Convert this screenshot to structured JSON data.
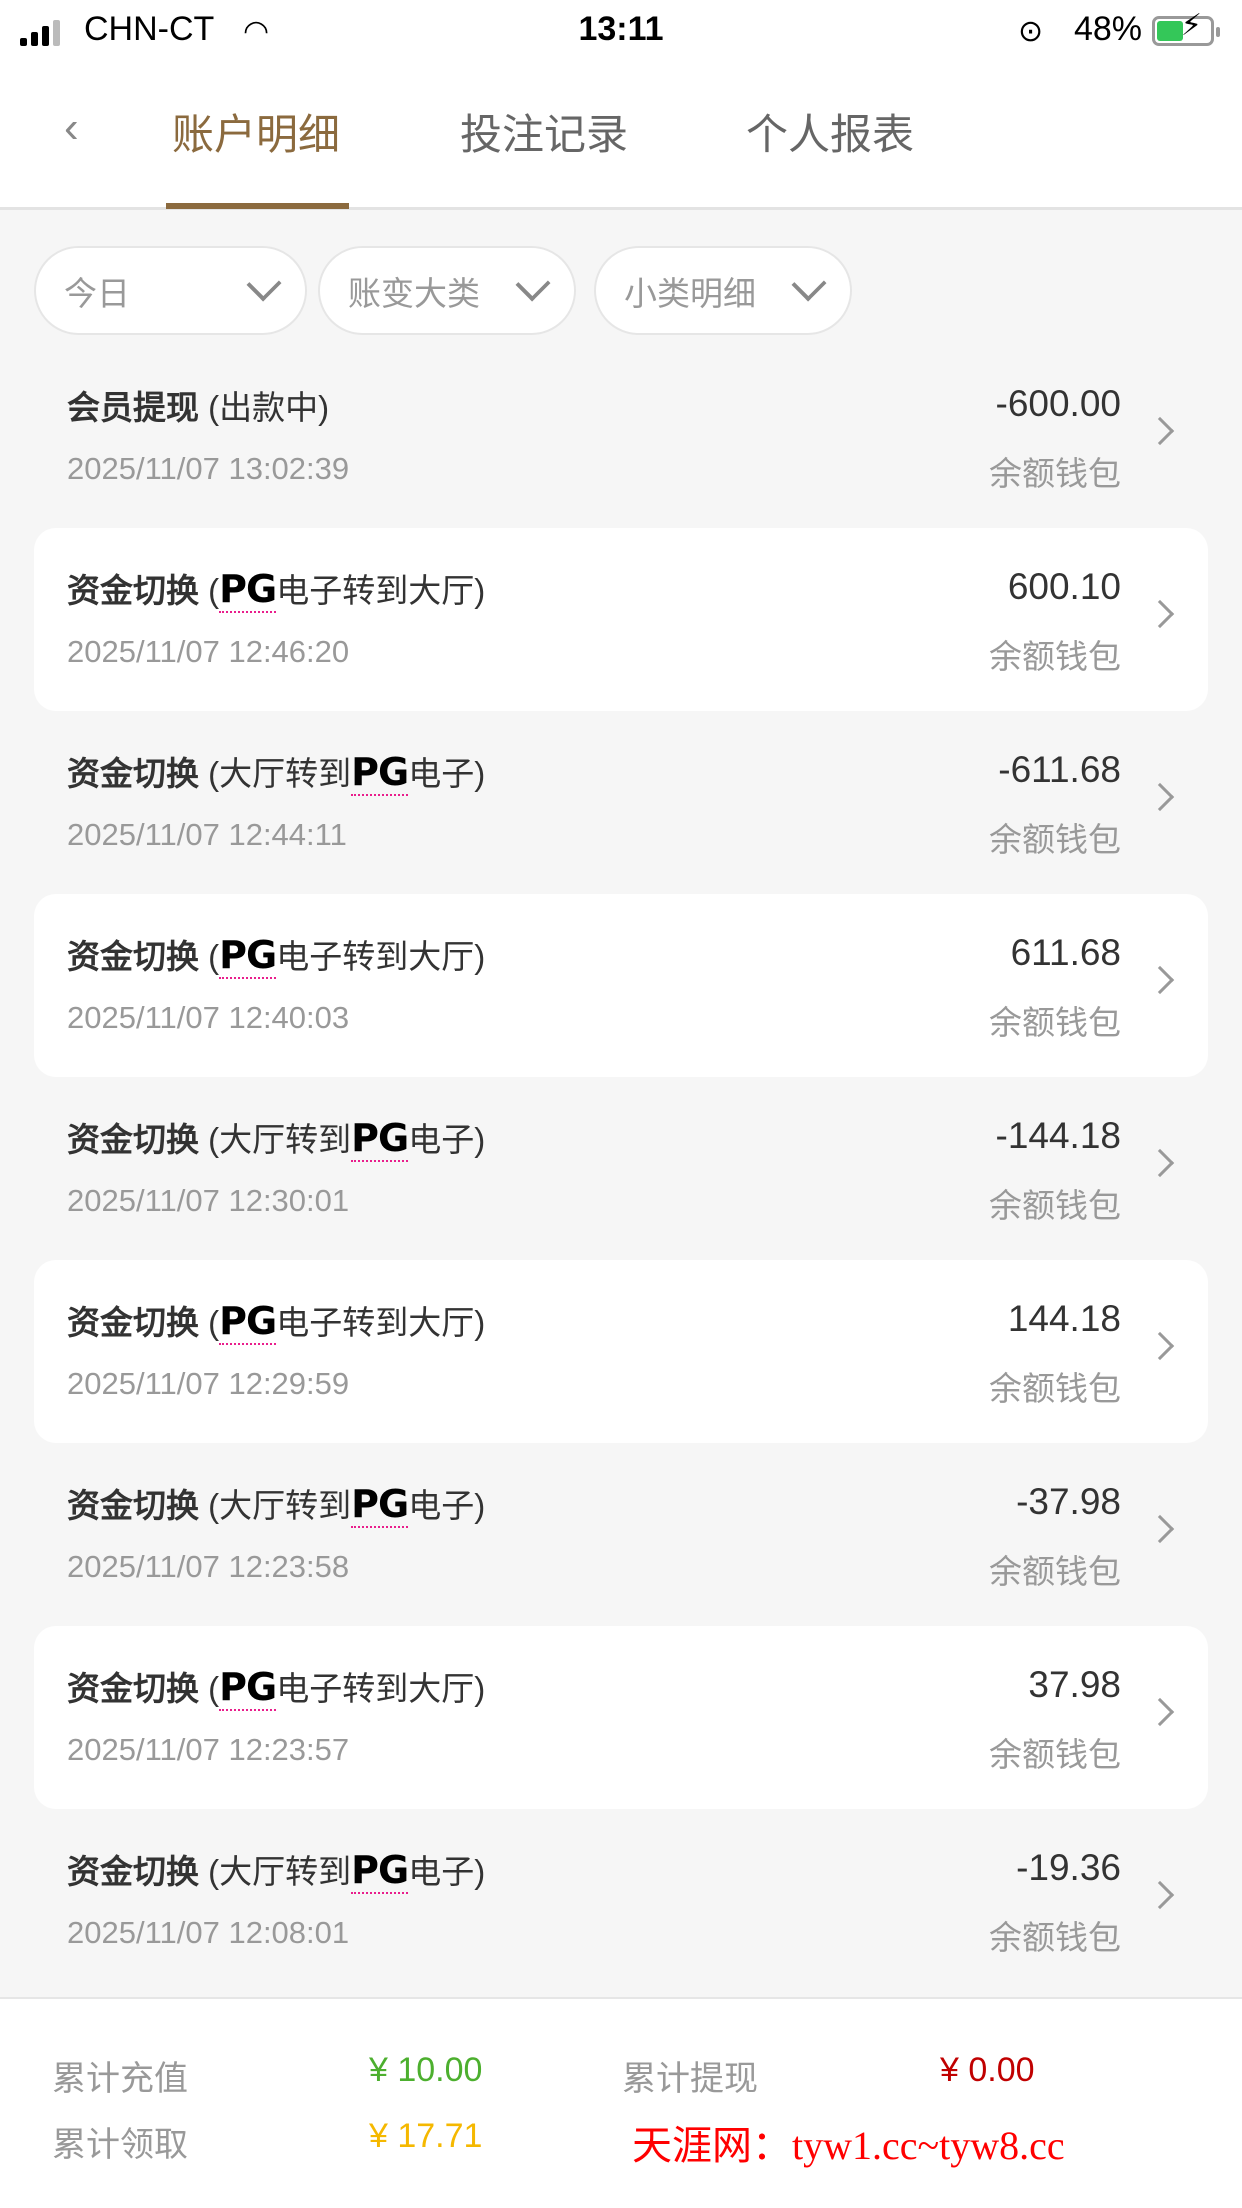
{
  "status_bar": {
    "carrier": "CHN-CT",
    "time": "13:11",
    "battery": "48%",
    "battery_level": 48,
    "icons": [
      "signal-icon",
      "wifi-icon",
      "orientation-lock-icon",
      "battery-charging-icon"
    ]
  },
  "nav": {
    "tabs": [
      {
        "label": "账户明细",
        "active": true
      },
      {
        "label": "投注记录",
        "active": false
      },
      {
        "label": "个人报表",
        "active": false
      }
    ],
    "accent": "#8b6a3e"
  },
  "filters": [
    {
      "label": "今日"
    },
    {
      "label": "账变大类"
    },
    {
      "label": "小类明细"
    }
  ],
  "records": [
    {
      "type": "会员提现",
      "detail_pre": "(出款中)",
      "logo": "",
      "detail_post": "",
      "datetime": "2025/11/07 13:02:39",
      "amount": "-600.00",
      "wallet": "余额钱包"
    },
    {
      "type": "资金切换",
      "detail_pre": "(",
      "logo": "PG",
      "detail_post": "电子转到大厅)",
      "datetime": "2025/11/07 12:46:20",
      "amount": "600.10",
      "wallet": "余额钱包"
    },
    {
      "type": "资金切换",
      "detail_pre": "(大厅转到",
      "logo": "PG",
      "detail_post": "电子)",
      "datetime": "2025/11/07 12:44:11",
      "amount": "-611.68",
      "wallet": "余额钱包"
    },
    {
      "type": "资金切换",
      "detail_pre": "(",
      "logo": "PG",
      "detail_post": "电子转到大厅)",
      "datetime": "2025/11/07 12:40:03",
      "amount": "611.68",
      "wallet": "余额钱包"
    },
    {
      "type": "资金切换",
      "detail_pre": "(大厅转到",
      "logo": "PG",
      "detail_post": "电子)",
      "datetime": "2025/11/07 12:30:01",
      "amount": "-144.18",
      "wallet": "余额钱包"
    },
    {
      "type": "资金切换",
      "detail_pre": "(",
      "logo": "PG",
      "detail_post": "电子转到大厅)",
      "datetime": "2025/11/07 12:29:59",
      "amount": "144.18",
      "wallet": "余额钱包"
    },
    {
      "type": "资金切换",
      "detail_pre": "(大厅转到",
      "logo": "PG",
      "detail_post": "电子)",
      "datetime": "2025/11/07 12:23:58",
      "amount": "-37.98",
      "wallet": "余额钱包"
    },
    {
      "type": "资金切换",
      "detail_pre": "(",
      "logo": "PG",
      "detail_post": "电子转到大厅)",
      "datetime": "2025/11/07 12:23:57",
      "amount": "37.98",
      "wallet": "余额钱包"
    },
    {
      "type": "资金切换",
      "detail_pre": "(大厅转到",
      "logo": "PG",
      "detail_post": "电子)",
      "datetime": "2025/11/07 12:08:01",
      "amount": "-19.36",
      "wallet": "余额钱包"
    }
  ],
  "summary": {
    "deposit_label": "累计充值",
    "deposit_value": "¥ 10.00",
    "deposit_color": "#4caf2e",
    "withdraw_label": "累计提现",
    "withdraw_value": "¥ 0.00",
    "withdraw_color": "#c00000",
    "claim_label": "累计领取",
    "claim_value": "¥ 17.71",
    "claim_color": "#f5b800"
  },
  "watermark": "天涯网：tyw1.cc~tyw8.cc"
}
